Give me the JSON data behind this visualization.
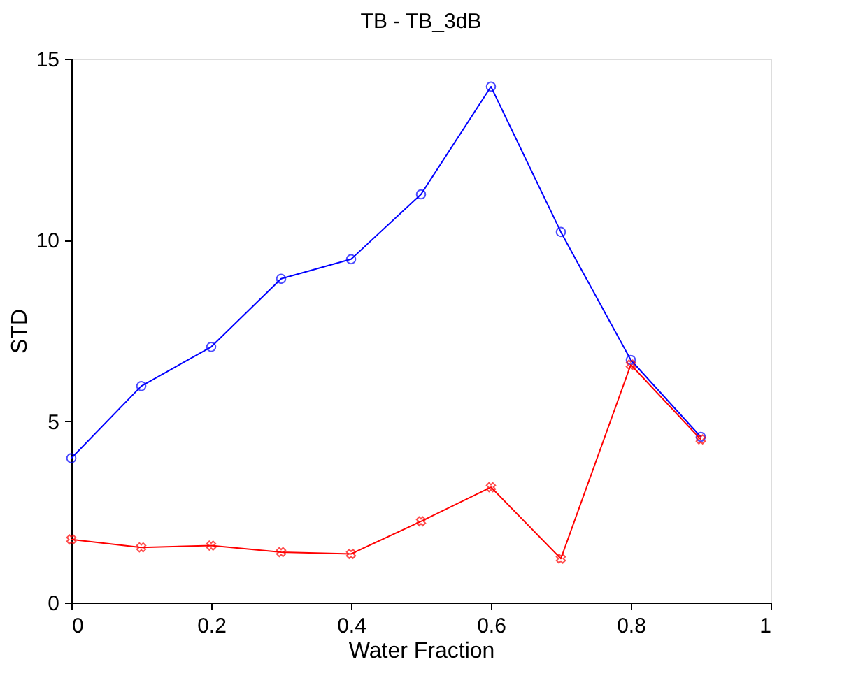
{
  "chart_data": {
    "type": "line",
    "title": "TB - TB_3dB",
    "xlabel": "Water Fraction",
    "ylabel": "STD",
    "x": [
      0,
      0.1,
      0.2,
      0.3,
      0.4,
      0.5,
      0.6,
      0.7,
      0.8,
      0.9
    ],
    "series": [
      {
        "color": "#0000ff",
        "marker": "circle",
        "values": [
          3.98,
          5.97,
          7.05,
          8.93,
          9.47,
          11.26,
          14.23,
          10.22,
          6.69,
          4.57
        ]
      },
      {
        "color": "#ff0000",
        "marker": "cross",
        "values": [
          1.74,
          1.52,
          1.57,
          1.39,
          1.34,
          2.24,
          3.18,
          1.21,
          6.56,
          4.5
        ]
      }
    ],
    "xlim": [
      0,
      1
    ],
    "xticks": [
      0,
      0.2,
      0.4,
      0.6,
      0.8,
      1
    ],
    "ylim": [
      0,
      15
    ],
    "yticks": [
      0,
      5,
      10,
      15
    ],
    "grid": false,
    "legend": false,
    "line_style": "solid"
  }
}
